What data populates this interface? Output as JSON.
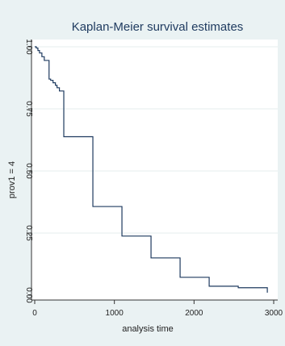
{
  "chart_data": {
    "type": "line",
    "step": true,
    "title": "Kaplan-Meier survival estimates",
    "xlabel": "analysis time",
    "ylabel": "prov1 = 4",
    "xlim": [
      0,
      3000
    ],
    "ylim": [
      0,
      1
    ],
    "xticks": [
      0,
      1000,
      2000,
      3000
    ],
    "xtick_labels": [
      "0",
      "1000",
      "2000",
      "3000"
    ],
    "yticks": [
      0,
      0.25,
      0.5,
      0.75,
      1
    ],
    "ytick_labels": [
      "0.00",
      "0.25",
      "0.50",
      "0.75",
      "1.00"
    ],
    "grid": true,
    "colors": {
      "background": "#eaf2f3",
      "plot_area": "#ffffff",
      "line": "#1e3a5f",
      "grid": "#e6eeee"
    },
    "series": [
      {
        "x": [
          0,
          20,
          40,
          60,
          90,
          120,
          180,
          200,
          230,
          260,
          280,
          310,
          365,
          730,
          1095,
          1460,
          1825,
          2190,
          2555,
          2920
        ],
        "y": [
          1.0,
          0.995,
          0.985,
          0.975,
          0.96,
          0.945,
          0.87,
          0.865,
          0.855,
          0.845,
          0.835,
          0.822,
          0.638,
          0.357,
          0.238,
          0.15,
          0.072,
          0.036,
          0.03,
          0.01
        ]
      }
    ]
  }
}
